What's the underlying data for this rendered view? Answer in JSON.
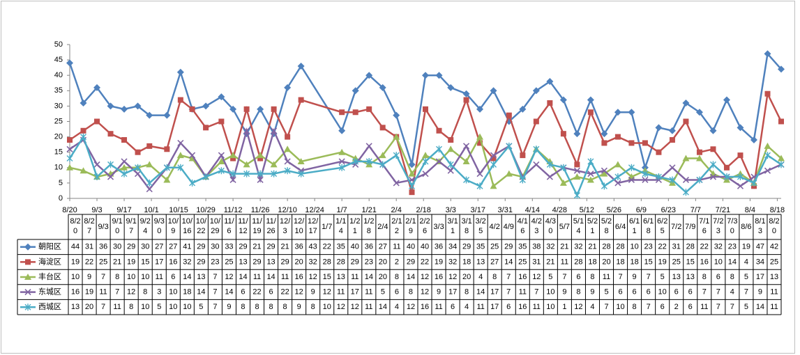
{
  "chart_data": {
    "type": "line",
    "x": [
      "8/20",
      "8/27",
      "9/3",
      "9/10",
      "9/17",
      "9/24",
      "9/30",
      "10/9",
      "10/16",
      "10/22",
      "10/29",
      "11/6",
      "11/12",
      "11/19",
      "11/26",
      "12/3",
      "12/10",
      "12/17",
      "1/7",
      "1/14",
      "1/21",
      "1/28",
      "2/4",
      "2/12",
      "2/19",
      "2/26",
      "3/3",
      "3/11",
      "3/18",
      "3/25",
      "4/2",
      "4/9",
      "4/16",
      "4/23",
      "4/30",
      "5/7",
      "5/14",
      "5/21",
      "5/28",
      "6/4",
      "6/11",
      "6/18",
      "6/25",
      "7/2",
      "7/9",
      "7/16",
      "7/23",
      "7/30",
      "8/6",
      "8/13",
      "8/20"
    ],
    "xticks": [
      "8/20",
      "9/3",
      "9/17",
      "10/1",
      "10/15",
      "10/29",
      "11/12",
      "11/26",
      "12/10",
      "12/24",
      "1/7",
      "1/21",
      "2/4",
      "2/18",
      "3/3",
      "3/17",
      "3/31",
      "4/14",
      "4/28",
      "5/12",
      "5/26",
      "6/9",
      "6/23",
      "7/7",
      "7/21",
      "8/4",
      "8/18"
    ],
    "ylim": [
      0,
      50
    ],
    "yticks": [
      0,
      5,
      10,
      15,
      20,
      25,
      30,
      35,
      40,
      45,
      50
    ],
    "series": [
      {
        "name": "朝阳区",
        "color": "#4F81BD",
        "marker": "diamond",
        "values": [
          44,
          31,
          36,
          30,
          29,
          30,
          27,
          27,
          41,
          29,
          30,
          33,
          29,
          21,
          29,
          21,
          36,
          43,
          22,
          35,
          40,
          36,
          27,
          11,
          40,
          40,
          36,
          34,
          29,
          35,
          25,
          29,
          35,
          38,
          32,
          21,
          32,
          21,
          28,
          28,
          10,
          23,
          22,
          31,
          28,
          22,
          32,
          23,
          19,
          47,
          42
        ]
      },
      {
        "name": "海淀区",
        "color": "#C0504D",
        "marker": "square",
        "values": [
          19,
          22,
          25,
          21,
          19,
          15,
          17,
          16,
          32,
          29,
          23,
          25,
          13,
          29,
          13,
          29,
          20,
          32,
          28,
          28,
          29,
          23,
          20,
          2,
          29,
          22,
          19,
          32,
          18,
          13,
          27,
          14,
          25,
          31,
          21,
          11,
          28,
          18,
          20,
          18,
          18,
          15,
          19,
          25,
          15,
          16,
          10,
          14,
          4,
          34,
          25
        ]
      },
      {
        "name": "丰台区",
        "color": "#9BBB59",
        "marker": "triangle",
        "values": [
          10,
          9,
          7,
          8,
          10,
          10,
          11,
          6,
          14,
          13,
          7,
          12,
          14,
          11,
          14,
          11,
          16,
          12,
          15,
          13,
          11,
          14,
          20,
          8,
          14,
          12,
          16,
          12,
          20,
          4,
          8,
          7,
          16,
          12,
          5,
          7,
          6,
          8,
          11,
          7,
          9,
          7,
          5,
          13,
          13,
          8,
          6,
          8,
          5,
          17,
          13
        ]
      },
      {
        "name": "东城区",
        "color": "#8064A2",
        "marker": "x",
        "values": [
          16,
          19,
          11,
          7,
          12,
          8,
          3,
          10,
          18,
          14,
          7,
          14,
          6,
          22,
          6,
          22,
          12,
          9,
          12,
          11,
          17,
          11,
          5,
          6,
          8,
          12,
          9,
          17,
          8,
          14,
          17,
          7,
          11,
          7,
          10,
          9,
          8,
          9,
          5,
          6,
          6,
          6,
          10,
          6,
          6,
          7,
          7,
          4,
          7,
          9,
          11
        ]
      },
      {
        "name": "西城区",
        "color": "#4BACC6",
        "marker": "star",
        "values": [
          13,
          20,
          7,
          11,
          8,
          10,
          5,
          10,
          10,
          5,
          7,
          9,
          8,
          8,
          8,
          8,
          9,
          8,
          10,
          12,
          12,
          11,
          14,
          4,
          12,
          16,
          11,
          6,
          4,
          11,
          17,
          6,
          16,
          11,
          10,
          1,
          12,
          4,
          7,
          10,
          8,
          7,
          6,
          2,
          6,
          11,
          7,
          7,
          5,
          14,
          11
        ]
      }
    ]
  }
}
